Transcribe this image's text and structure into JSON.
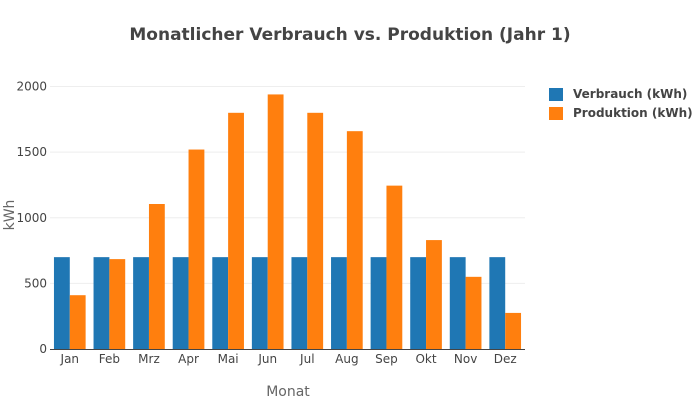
{
  "chart_data": {
    "type": "bar",
    "title": "Monatlicher Verbrauch vs. Produktion (Jahr 1)",
    "xlabel": "Monat",
    "ylabel": "kWh",
    "categories": [
      "Jan",
      "Feb",
      "Mrz",
      "Apr",
      "Mai",
      "Jun",
      "Jul",
      "Aug",
      "Sep",
      "Okt",
      "Nov",
      "Dez"
    ],
    "series": [
      {
        "name": "Verbrauch (kWh)",
        "color": "#1f77b4",
        "values": [
          700,
          700,
          700,
          700,
          700,
          700,
          700,
          700,
          700,
          700,
          700,
          700
        ]
      },
      {
        "name": "Produktion (kWh)",
        "color": "#ff7f0e",
        "values": [
          410,
          685,
          1105,
          1520,
          1800,
          1940,
          1800,
          1660,
          1245,
          830,
          550,
          275
        ]
      }
    ],
    "ylim": [
      0,
      2050
    ],
    "yticks": [
      0,
      500,
      1000,
      1500,
      2000
    ],
    "grid": true,
    "legend_position": "top-right"
  }
}
